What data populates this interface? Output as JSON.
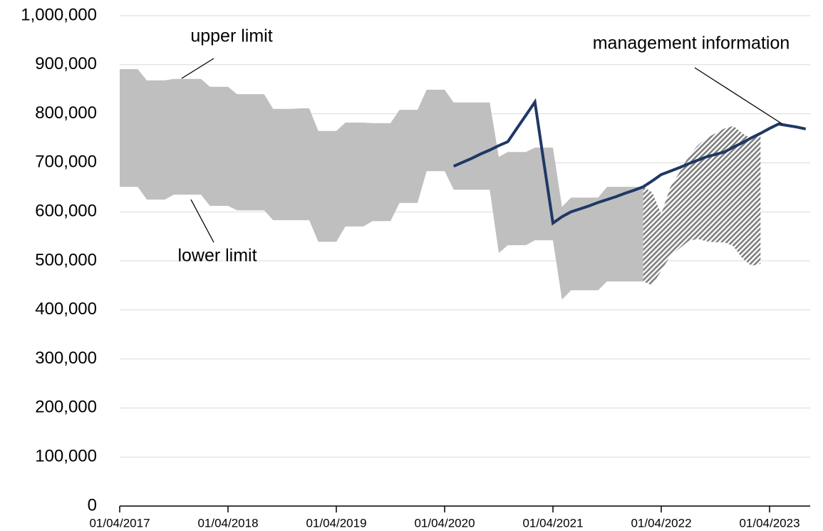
{
  "chart_data": {
    "type": "line",
    "categories": [
      "01/04/2017",
      null,
      null,
      null,
      null,
      null,
      null,
      null,
      null,
      null,
      null,
      null,
      "01/04/2018",
      null,
      null,
      null,
      null,
      null,
      null,
      null,
      null,
      null,
      null,
      null,
      "01/04/2019",
      null,
      null,
      null,
      null,
      null,
      null,
      null,
      null,
      null,
      null,
      null,
      "01/04/2020",
      null,
      null,
      null,
      null,
      null,
      null,
      null,
      null,
      null,
      null,
      null,
      "01/04/2021",
      null,
      null,
      null,
      null,
      null,
      null,
      null,
      null,
      null,
      null,
      null,
      "01/04/2022",
      null,
      null,
      null,
      null,
      null,
      null,
      null,
      null,
      null,
      null,
      null,
      "01/04/2023",
      null,
      null,
      null,
      null
    ],
    "series": [
      {
        "type": "band",
        "color": "#bfbfbf",
        "upper": {
          "name": "upper limit",
          "values": [
            891000,
            891000,
            891000,
            868000,
            868000,
            868000,
            871000,
            871000,
            871000,
            871000,
            855000,
            855000,
            855000,
            840000,
            840000,
            840000,
            840000,
            810000,
            810000,
            810000,
            811000,
            811000,
            765000,
            765000,
            765000,
            782000,
            782000,
            782000,
            781000,
            781000,
            781000,
            808000,
            808000,
            808000,
            849000,
            849000,
            849000,
            823000,
            823000,
            823000,
            823000,
            823000,
            712000,
            722000,
            722000,
            722000,
            731000,
            731000,
            731000,
            610000,
            629000,
            629000,
            629000,
            629000,
            651000,
            651000,
            651000,
            651000,
            651000,
            null,
            null,
            null,
            null,
            null,
            null,
            null,
            null,
            null,
            null,
            null,
            null,
            null,
            null,
            null,
            null,
            null,
            null
          ]
        },
        "lower": {
          "name": "lower limit",
          "values": [
            651000,
            651000,
            651000,
            625000,
            625000,
            625000,
            635000,
            635000,
            635000,
            635000,
            612000,
            612000,
            612000,
            603000,
            603000,
            603000,
            603000,
            583000,
            583000,
            583000,
            583000,
            583000,
            539000,
            539000,
            539000,
            570000,
            570000,
            570000,
            581000,
            581000,
            581000,
            618000,
            618000,
            618000,
            683000,
            683000,
            683000,
            645000,
            645000,
            645000,
            645000,
            645000,
            516000,
            532000,
            532000,
            532000,
            542000,
            542000,
            542000,
            421000,
            440000,
            440000,
            440000,
            440000,
            458000,
            458000,
            458000,
            458000,
            458000,
            null,
            null,
            null,
            null,
            null,
            null,
            null,
            null,
            null,
            null,
            null,
            null,
            null,
            null,
            null,
            null,
            null,
            null
          ]
        }
      },
      {
        "type": "band",
        "color": "#7f7f7f",
        "pattern": "hatch",
        "upper": {
          "values": [
            null,
            null,
            null,
            null,
            null,
            null,
            null,
            null,
            null,
            null,
            null,
            null,
            null,
            null,
            null,
            null,
            null,
            null,
            null,
            null,
            null,
            null,
            null,
            null,
            null,
            null,
            null,
            null,
            null,
            null,
            null,
            null,
            null,
            null,
            null,
            null,
            null,
            null,
            null,
            null,
            null,
            null,
            null,
            null,
            null,
            null,
            null,
            null,
            null,
            null,
            null,
            null,
            null,
            null,
            null,
            null,
            null,
            null,
            651000,
            640000,
            595000,
            650000,
            680000,
            712000,
            735000,
            750000,
            760000,
            770000,
            775000,
            760000,
            749000,
            756000,
            null,
            null,
            null,
            null,
            null
          ]
        },
        "lower": {
          "values": [
            null,
            null,
            null,
            null,
            null,
            null,
            null,
            null,
            null,
            null,
            null,
            null,
            null,
            null,
            null,
            null,
            null,
            null,
            null,
            null,
            null,
            null,
            null,
            null,
            null,
            null,
            null,
            null,
            null,
            null,
            null,
            null,
            null,
            null,
            null,
            null,
            null,
            null,
            null,
            null,
            null,
            null,
            null,
            null,
            null,
            null,
            null,
            null,
            null,
            null,
            null,
            null,
            null,
            null,
            null,
            null,
            null,
            null,
            458000,
            450000,
            480000,
            510000,
            525000,
            540000,
            545000,
            540000,
            538000,
            538000,
            530000,
            505000,
            490000,
            494000,
            null,
            null,
            null,
            null,
            null
          ]
        }
      },
      {
        "type": "line",
        "name": "management information",
        "color": "#1f3864",
        "values": [
          null,
          null,
          null,
          null,
          null,
          null,
          null,
          null,
          null,
          null,
          null,
          null,
          null,
          null,
          null,
          null,
          null,
          null,
          null,
          null,
          null,
          null,
          null,
          null,
          null,
          null,
          null,
          null,
          null,
          null,
          null,
          null,
          null,
          null,
          null,
          null,
          null,
          693000,
          701000,
          709000,
          718000,
          726000,
          735000,
          743000,
          770000,
          797000,
          824000,
          700000,
          577000,
          590000,
          600000,
          606000,
          612000,
          619000,
          625000,
          631000,
          638000,
          644000,
          651000,
          663000,
          676000,
          683000,
          690000,
          698000,
          705000,
          712000,
          717000,
          722000,
          732000,
          741000,
          751000,
          760000,
          770000,
          779000,
          776000,
          773000,
          769000
        ]
      }
    ],
    "ylim": [
      0,
      1000000
    ],
    "yticks": [
      0,
      {
        "value": 100000,
        "label": "100,000"
      },
      {
        "value": 200000,
        "label": "200,000"
      },
      {
        "value": 300000,
        "label": "300,000"
      },
      {
        "value": 400000,
        "label": "400,000"
      },
      {
        "value": 500000,
        "label": "500,000"
      },
      {
        "value": 600000,
        "label": "600,000"
      },
      {
        "value": 700000,
        "label": "700,000"
      },
      {
        "value": 800000,
        "label": "800,000"
      },
      {
        "value": 900000,
        "label": "900,000"
      },
      {
        "value": 1000000,
        "label": "1,000,000"
      }
    ],
    "grid": true
  }
}
